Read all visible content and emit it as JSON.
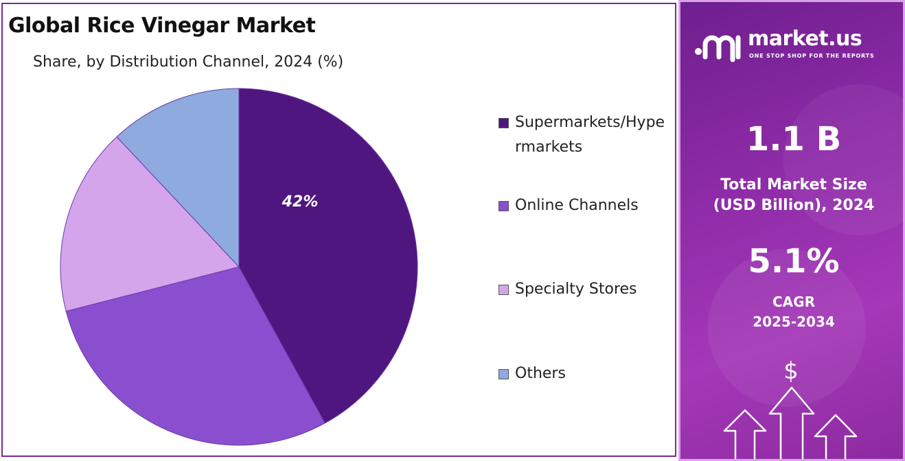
{
  "chart_data": {
    "type": "pie",
    "title": "Global Rice Vinegar Market",
    "subtitle": "Share, by Distribution Channel, 2024 (%)",
    "slices": [
      {
        "label": "Supermarkets/Hypermarkets",
        "value": 42,
        "color": "#4f1680",
        "data_label": "42%"
      },
      {
        "label": "Online Channels",
        "value": 29,
        "color": "#8a4fcf",
        "data_label": ""
      },
      {
        "label": "Specialty Stores",
        "value": 17,
        "color": "#d5a5ec",
        "data_label": ""
      },
      {
        "label": "Others",
        "value": 12,
        "color": "#8eaade",
        "data_label": ""
      }
    ],
    "legend_position": "right"
  },
  "brand": {
    "name": "market.us",
    "tagline": "ONE STOP SHOP FOR THE REPORTS",
    "icon": "market-us-logo-icon"
  },
  "stats": {
    "market_size_value": "1.1 B",
    "market_size_label_line1": "Total Market Size",
    "market_size_label_line2": "(USD Billion), 2024",
    "cagr_value": "5.1%",
    "cagr_label": "CAGR",
    "cagr_period": "2025-2034"
  },
  "decor": {
    "dollar_symbol": "$",
    "icons": [
      "dollar-icon",
      "up-arrow-icon"
    ]
  },
  "colors": {
    "panel_border": "#7a2a8c",
    "info_panel": "#8c2aa6"
  }
}
